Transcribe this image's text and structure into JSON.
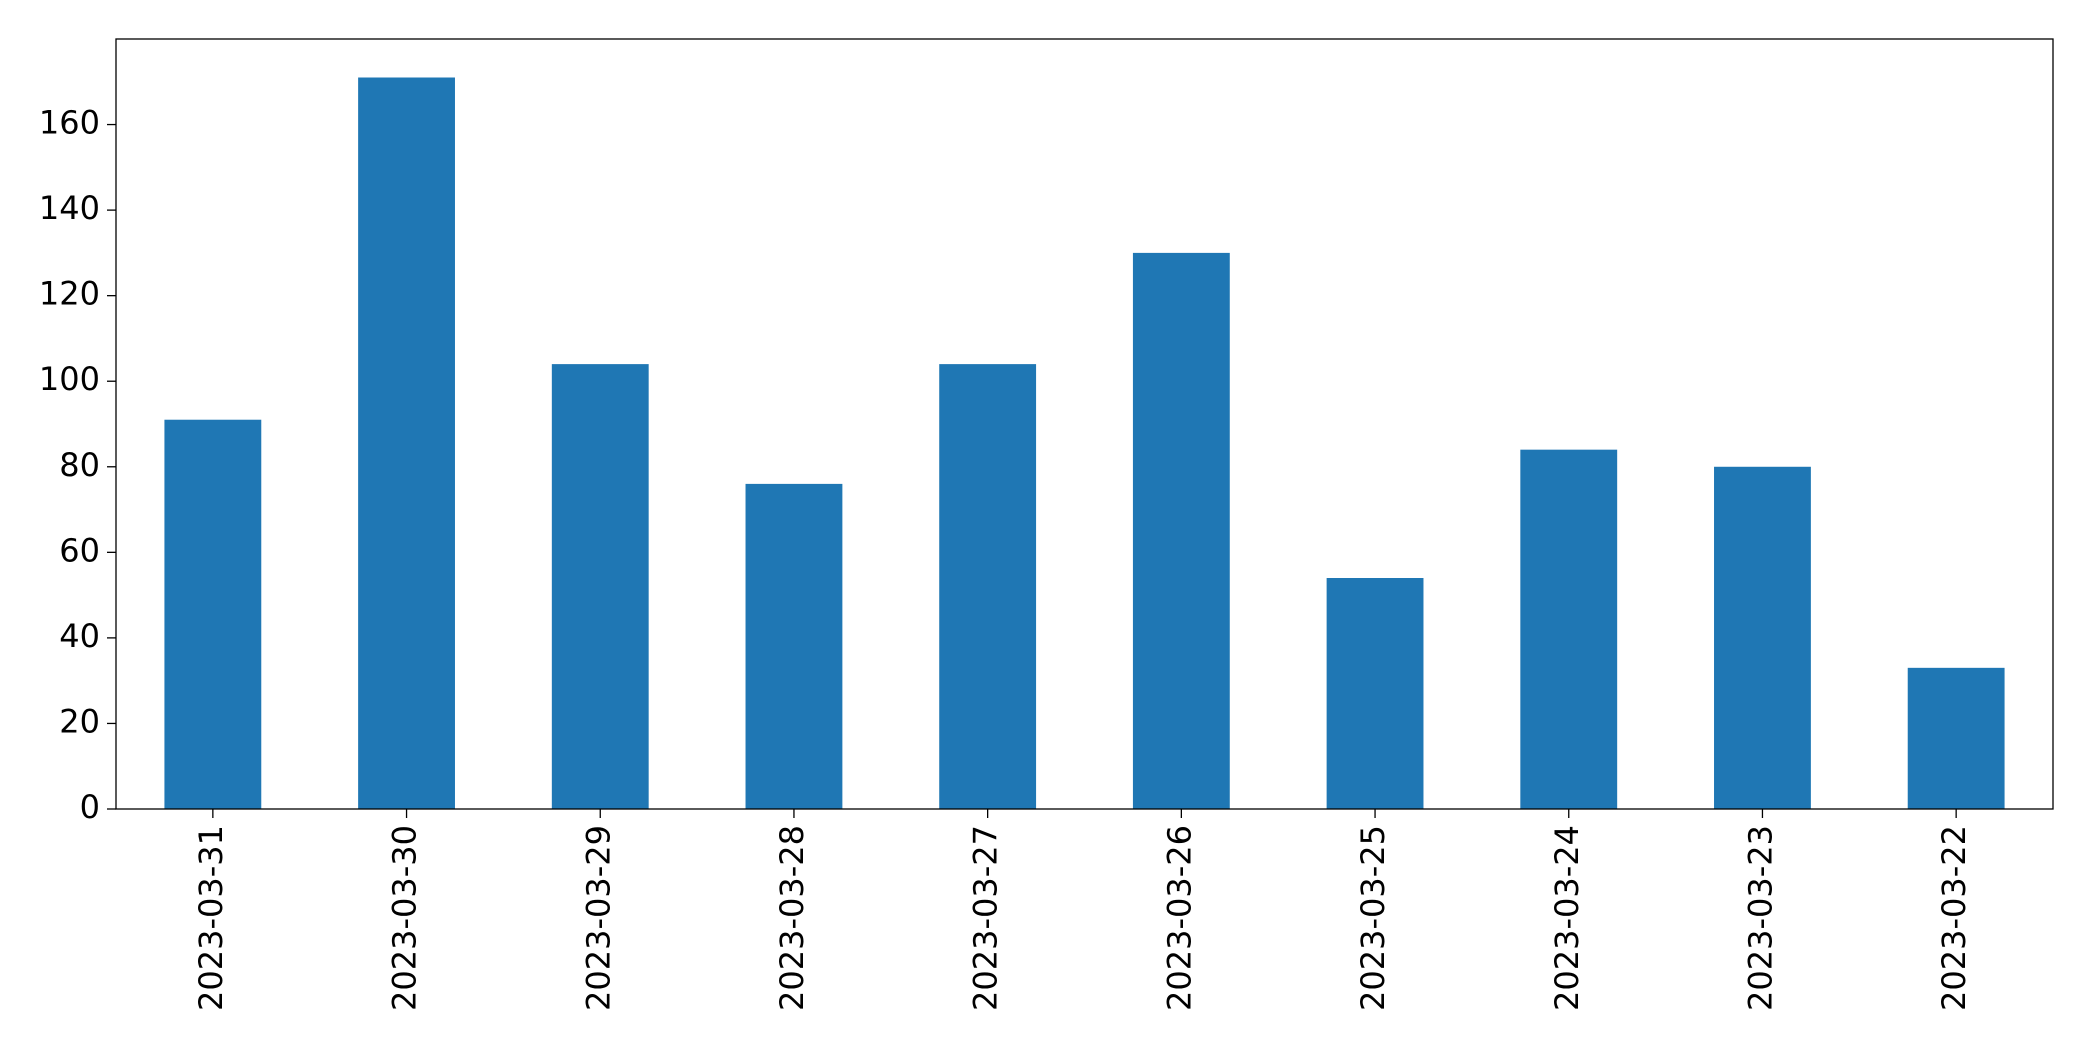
{
  "chart_data": {
    "type": "bar",
    "categories": [
      "2023-03-31",
      "2023-03-30",
      "2023-03-29",
      "2023-03-28",
      "2023-03-27",
      "2023-03-26",
      "2023-03-25",
      "2023-03-24",
      "2023-03-23",
      "2023-03-22"
    ],
    "values": [
      91,
      171,
      104,
      76,
      104,
      130,
      54,
      84,
      80,
      33
    ],
    "color": "#1f77b4",
    "ylim": [
      0,
      180
    ],
    "yticks": [
      0,
      20,
      40,
      60,
      80,
      100,
      120,
      140,
      160
    ],
    "grid": false
  }
}
